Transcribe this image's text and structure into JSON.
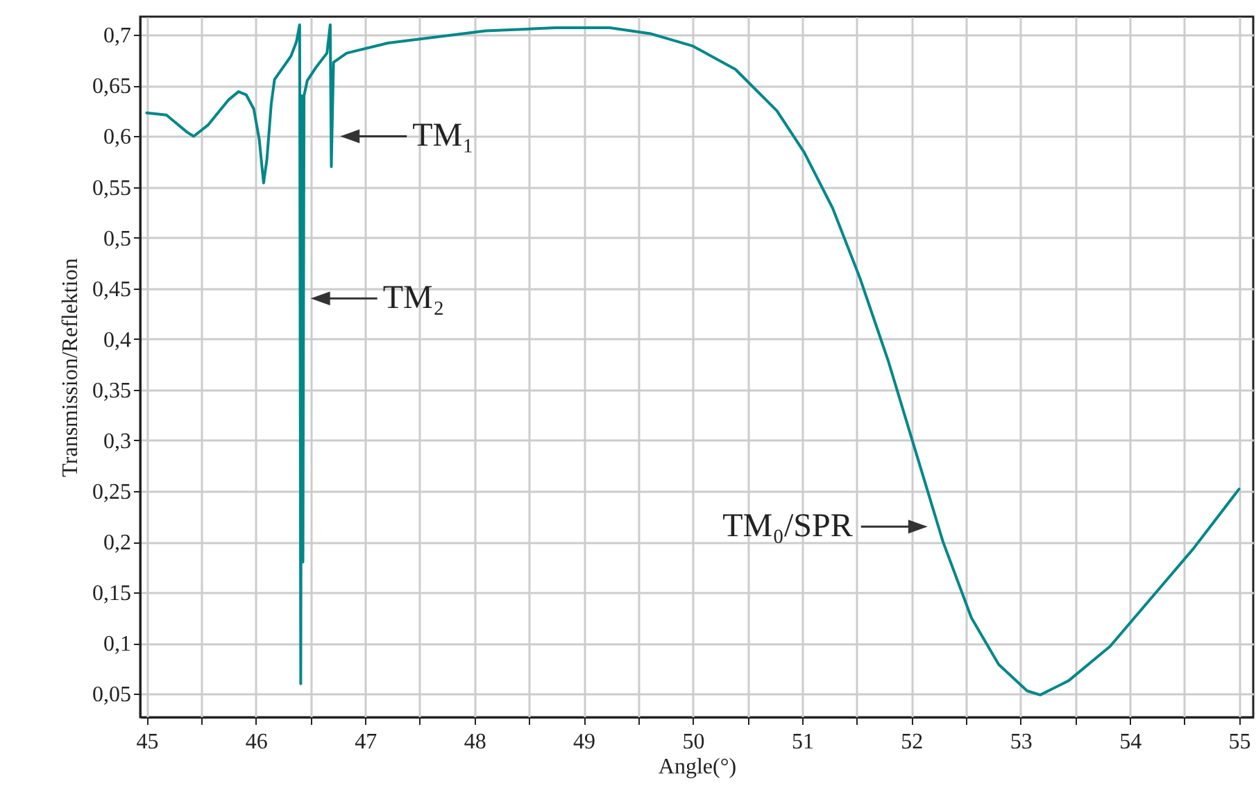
{
  "chart_data": {
    "type": "line",
    "xlabel": "Angle(°)",
    "ylabel": "Transmission/Reflektion",
    "x": [
      45.0,
      45.18,
      45.37,
      45.43,
      45.56,
      45.75,
      45.84,
      45.91,
      45.98,
      46.03,
      46.07,
      46.1,
      46.14,
      46.17,
      46.32,
      46.37,
      46.4,
      46.41,
      46.42,
      46.43,
      46.44,
      46.47,
      46.55,
      46.65,
      46.68,
      46.69,
      46.71,
      46.83,
      47.21,
      48.1,
      48.74,
      49.24,
      49.62,
      50.0,
      50.39,
      50.77,
      51.02,
      51.28,
      51.53,
      51.79,
      52.04,
      52.29,
      52.55,
      52.8,
      53.06,
      53.18,
      53.44,
      53.82,
      54.2,
      54.58,
      55.0
    ],
    "series": [
      {
        "color": "#00878a",
        "values": [
          0.623,
          0.621,
          0.604,
          0.6,
          0.611,
          0.636,
          0.644,
          0.641,
          0.627,
          0.597,
          0.554,
          0.577,
          0.632,
          0.656,
          0.679,
          0.693,
          0.71,
          0.06,
          0.64,
          0.18,
          0.64,
          0.655,
          0.668,
          0.682,
          0.71,
          0.57,
          0.673,
          0.682,
          0.692,
          0.704,
          0.707,
          0.707,
          0.701,
          0.689,
          0.666,
          0.625,
          0.584,
          0.529,
          0.46,
          0.378,
          0.289,
          0.2,
          0.125,
          0.079,
          0.053,
          0.049,
          0.063,
          0.097,
          0.145,
          0.193,
          0.252
        ]
      }
    ],
    "xlim": [
      44.94,
      55.13
    ],
    "ylim": [
      0.027,
      0.718
    ],
    "xticks": [
      45,
      {
        "value": 45.5,
        "label": null
      },
      46,
      {
        "value": 46.5,
        "label": null
      },
      47,
      {
        "value": 47.5,
        "label": null
      },
      48,
      {
        "value": 48.5,
        "label": null
      },
      49,
      {
        "value": 49.5,
        "label": null
      },
      50,
      {
        "value": 50.5,
        "label": null
      },
      51,
      {
        "value": 51.5,
        "label": null
      },
      52,
      {
        "value": 52.5,
        "label": null
      },
      53,
      {
        "value": 53.5,
        "label": null
      },
      54,
      {
        "value": 54.5,
        "label": null
      },
      55
    ],
    "yticks": [
      {
        "value": 0.05,
        "label": "0,05"
      },
      {
        "value": 0.1,
        "label": "0,1"
      },
      {
        "value": 0.15,
        "label": "0,15"
      },
      {
        "value": 0.2,
        "label": "0,2"
      },
      {
        "value": 0.25,
        "label": "0,25"
      },
      {
        "value": 0.3,
        "label": "0,3"
      },
      {
        "value": 0.35,
        "label": "0,35"
      },
      {
        "value": 0.4,
        "label": "0,4"
      },
      {
        "value": 0.45,
        "label": "0,45"
      },
      {
        "value": 0.5,
        "label": "0,5"
      },
      {
        "value": 0.55,
        "label": "0,55"
      },
      {
        "value": 0.6,
        "label": "0,6"
      },
      {
        "value": 0.65,
        "label": "0,65"
      },
      {
        "value": 0.7,
        "label": "0,7"
      }
    ],
    "grid": true,
    "annotations": [
      {
        "text": "TM₁",
        "x": 46.72,
        "y": 0.6
      },
      {
        "text": "TM₂",
        "x": 46.45,
        "y": 0.44
      },
      {
        "text": "TM₀/SPR",
        "x": 52.2,
        "y": 0.215
      }
    ]
  }
}
